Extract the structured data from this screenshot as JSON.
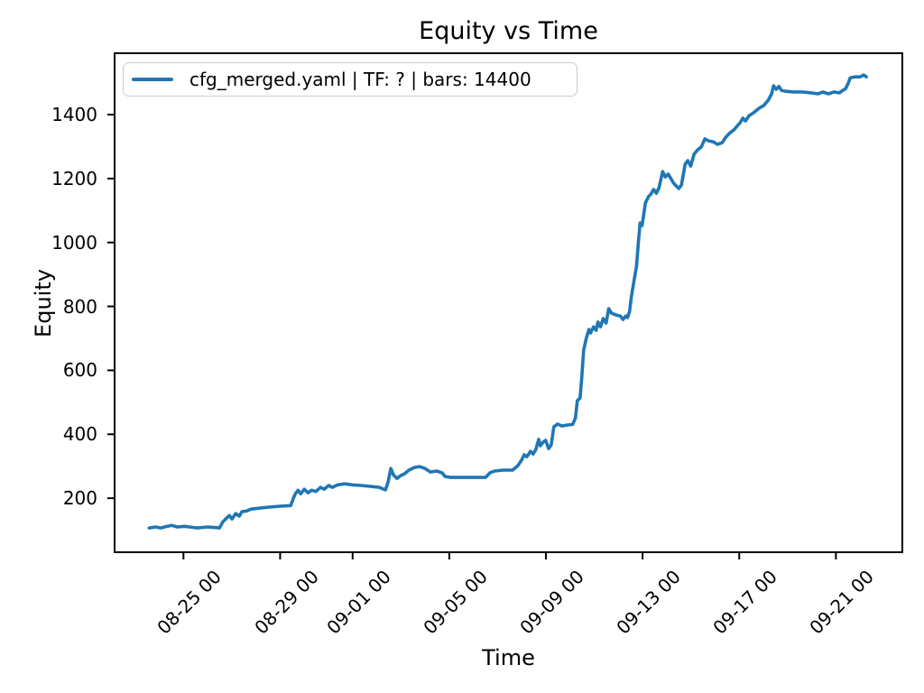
{
  "chart_data": {
    "type": "line",
    "title": "Equity vs Time",
    "xlabel": "Time",
    "ylabel": "Equity",
    "legend_position": "upper left",
    "grid": false,
    "axis_color": "#000000",
    "x_unit_hint": "days offset; tick labels are month-day hour strings",
    "xlim": [
      -0.85,
      31.75
    ],
    "ylim": [
      31,
      1592
    ],
    "xticks": [
      {
        "t": 2,
        "label": "08-25 00"
      },
      {
        "t": 6,
        "label": "08-29 00"
      },
      {
        "t": 9,
        "label": "09-01 00"
      },
      {
        "t": 13,
        "label": "09-05 00"
      },
      {
        "t": 17,
        "label": "09-09 00"
      },
      {
        "t": 21,
        "label": "09-13 00"
      },
      {
        "t": 25,
        "label": "09-17 00"
      },
      {
        "t": 29,
        "label": "09-21 00"
      }
    ],
    "yticks": [
      200,
      400,
      600,
      800,
      1000,
      1200,
      1400
    ],
    "series": [
      {
        "name": "cfg_merged.yaml | TF: ? | bars: 14400",
        "color": "#1f77b4",
        "points": [
          [
            0.58,
            107
          ],
          [
            0.84,
            110
          ],
          [
            1.06,
            107
          ],
          [
            1.33,
            112
          ],
          [
            1.51,
            115
          ],
          [
            1.74,
            110
          ],
          [
            2.04,
            112
          ],
          [
            2.26,
            110
          ],
          [
            2.56,
            107
          ],
          [
            3.01,
            110
          ],
          [
            3.49,
            107
          ],
          [
            3.64,
            127
          ],
          [
            3.79,
            138
          ],
          [
            3.9,
            146
          ],
          [
            4.01,
            135
          ],
          [
            4.16,
            152
          ],
          [
            4.31,
            144
          ],
          [
            4.42,
            158
          ],
          [
            4.61,
            160
          ],
          [
            4.8,
            166
          ],
          [
            5.17,
            169
          ],
          [
            5.54,
            172
          ],
          [
            5.99,
            175
          ],
          [
            6.44,
            177
          ],
          [
            6.55,
            200
          ],
          [
            6.63,
            214
          ],
          [
            6.74,
            225
          ],
          [
            6.85,
            214
          ],
          [
            7.0,
            228
          ],
          [
            7.15,
            217
          ],
          [
            7.3,
            225
          ],
          [
            7.48,
            221
          ],
          [
            7.67,
            234
          ],
          [
            7.82,
            228
          ],
          [
            8.01,
            240
          ],
          [
            8.16,
            234
          ],
          [
            8.38,
            242
          ],
          [
            8.68,
            245
          ],
          [
            8.98,
            242
          ],
          [
            9.35,
            240
          ],
          [
            9.72,
            237
          ],
          [
            10.09,
            234
          ],
          [
            10.36,
            226
          ],
          [
            10.47,
            251
          ],
          [
            10.58,
            293
          ],
          [
            10.69,
            273
          ],
          [
            10.84,
            262
          ],
          [
            10.99,
            271
          ],
          [
            11.14,
            276
          ],
          [
            11.33,
            288
          ],
          [
            11.55,
            296
          ],
          [
            11.77,
            299
          ],
          [
            12.0,
            293
          ],
          [
            12.22,
            282
          ],
          [
            12.48,
            285
          ],
          [
            12.71,
            279
          ],
          [
            12.82,
            268
          ],
          [
            13.08,
            265
          ],
          [
            13.64,
            265
          ],
          [
            14.2,
            265
          ],
          [
            14.5,
            265
          ],
          [
            14.68,
            279
          ],
          [
            14.87,
            285
          ],
          [
            15.24,
            288
          ],
          [
            15.62,
            288
          ],
          [
            15.84,
            302
          ],
          [
            15.99,
            319
          ],
          [
            16.1,
            336
          ],
          [
            16.21,
            330
          ],
          [
            16.36,
            347
          ],
          [
            16.47,
            338
          ],
          [
            16.58,
            352
          ],
          [
            16.7,
            384
          ],
          [
            16.77,
            364
          ],
          [
            16.88,
            375
          ],
          [
            16.99,
            381
          ],
          [
            17.11,
            355
          ],
          [
            17.22,
            367
          ],
          [
            17.33,
            423
          ],
          [
            17.48,
            432
          ],
          [
            17.66,
            426
          ],
          [
            17.89,
            429
          ],
          [
            18.11,
            431
          ],
          [
            18.22,
            451
          ],
          [
            18.3,
            505
          ],
          [
            18.41,
            513
          ],
          [
            18.48,
            573
          ],
          [
            18.56,
            663
          ],
          [
            18.67,
            700
          ],
          [
            18.78,
            728
          ],
          [
            18.85,
            717
          ],
          [
            18.97,
            736
          ],
          [
            19.08,
            725
          ],
          [
            19.15,
            751
          ],
          [
            19.26,
            736
          ],
          [
            19.37,
            762
          ],
          [
            19.49,
            748
          ],
          [
            19.6,
            793
          ],
          [
            19.71,
            779
          ],
          [
            19.9,
            773
          ],
          [
            20.08,
            770
          ],
          [
            20.19,
            759
          ],
          [
            20.31,
            770
          ],
          [
            20.38,
            765
          ],
          [
            20.46,
            784
          ],
          [
            20.53,
            827
          ],
          [
            20.64,
            878
          ],
          [
            20.75,
            926
          ],
          [
            20.83,
            1005
          ],
          [
            20.9,
            1061
          ],
          [
            20.98,
            1053
          ],
          [
            21.05,
            1090
          ],
          [
            21.12,
            1124
          ],
          [
            21.24,
            1143
          ],
          [
            21.35,
            1152
          ],
          [
            21.46,
            1166
          ],
          [
            21.57,
            1154
          ],
          [
            21.68,
            1171
          ],
          [
            21.83,
            1222
          ],
          [
            21.94,
            1205
          ],
          [
            22.06,
            1214
          ],
          [
            22.17,
            1200
          ],
          [
            22.28,
            1186
          ],
          [
            22.39,
            1177
          ],
          [
            22.5,
            1169
          ],
          [
            22.61,
            1180
          ],
          [
            22.76,
            1245
          ],
          [
            22.87,
            1256
          ],
          [
            22.99,
            1239
          ],
          [
            23.13,
            1276
          ],
          [
            23.28,
            1290
          ],
          [
            23.43,
            1299
          ],
          [
            23.58,
            1324
          ],
          [
            23.73,
            1318
          ],
          [
            23.92,
            1315
          ],
          [
            24.1,
            1307
          ],
          [
            24.29,
            1312
          ],
          [
            24.44,
            1329
          ],
          [
            24.63,
            1344
          ],
          [
            24.78,
            1352
          ],
          [
            24.93,
            1366
          ],
          [
            25.04,
            1375
          ],
          [
            25.15,
            1389
          ],
          [
            25.26,
            1380
          ],
          [
            25.41,
            1397
          ],
          [
            25.6,
            1406
          ],
          [
            25.82,
            1420
          ],
          [
            26.01,
            1428
          ],
          [
            26.2,
            1445
          ],
          [
            26.34,
            1465
          ],
          [
            26.42,
            1490
          ],
          [
            26.53,
            1479
          ],
          [
            26.64,
            1488
          ],
          [
            26.75,
            1476
          ],
          [
            26.94,
            1473
          ],
          [
            27.24,
            1471
          ],
          [
            27.61,
            1471
          ],
          [
            27.98,
            1468
          ],
          [
            28.25,
            1465
          ],
          [
            28.47,
            1471
          ],
          [
            28.69,
            1465
          ],
          [
            28.92,
            1471
          ],
          [
            29.14,
            1468
          ],
          [
            29.29,
            1476
          ],
          [
            29.4,
            1481
          ],
          [
            29.51,
            1498
          ],
          [
            29.59,
            1515
          ],
          [
            29.78,
            1518
          ],
          [
            30.0,
            1518
          ],
          [
            30.15,
            1524
          ],
          [
            30.26,
            1518
          ]
        ]
      }
    ]
  }
}
